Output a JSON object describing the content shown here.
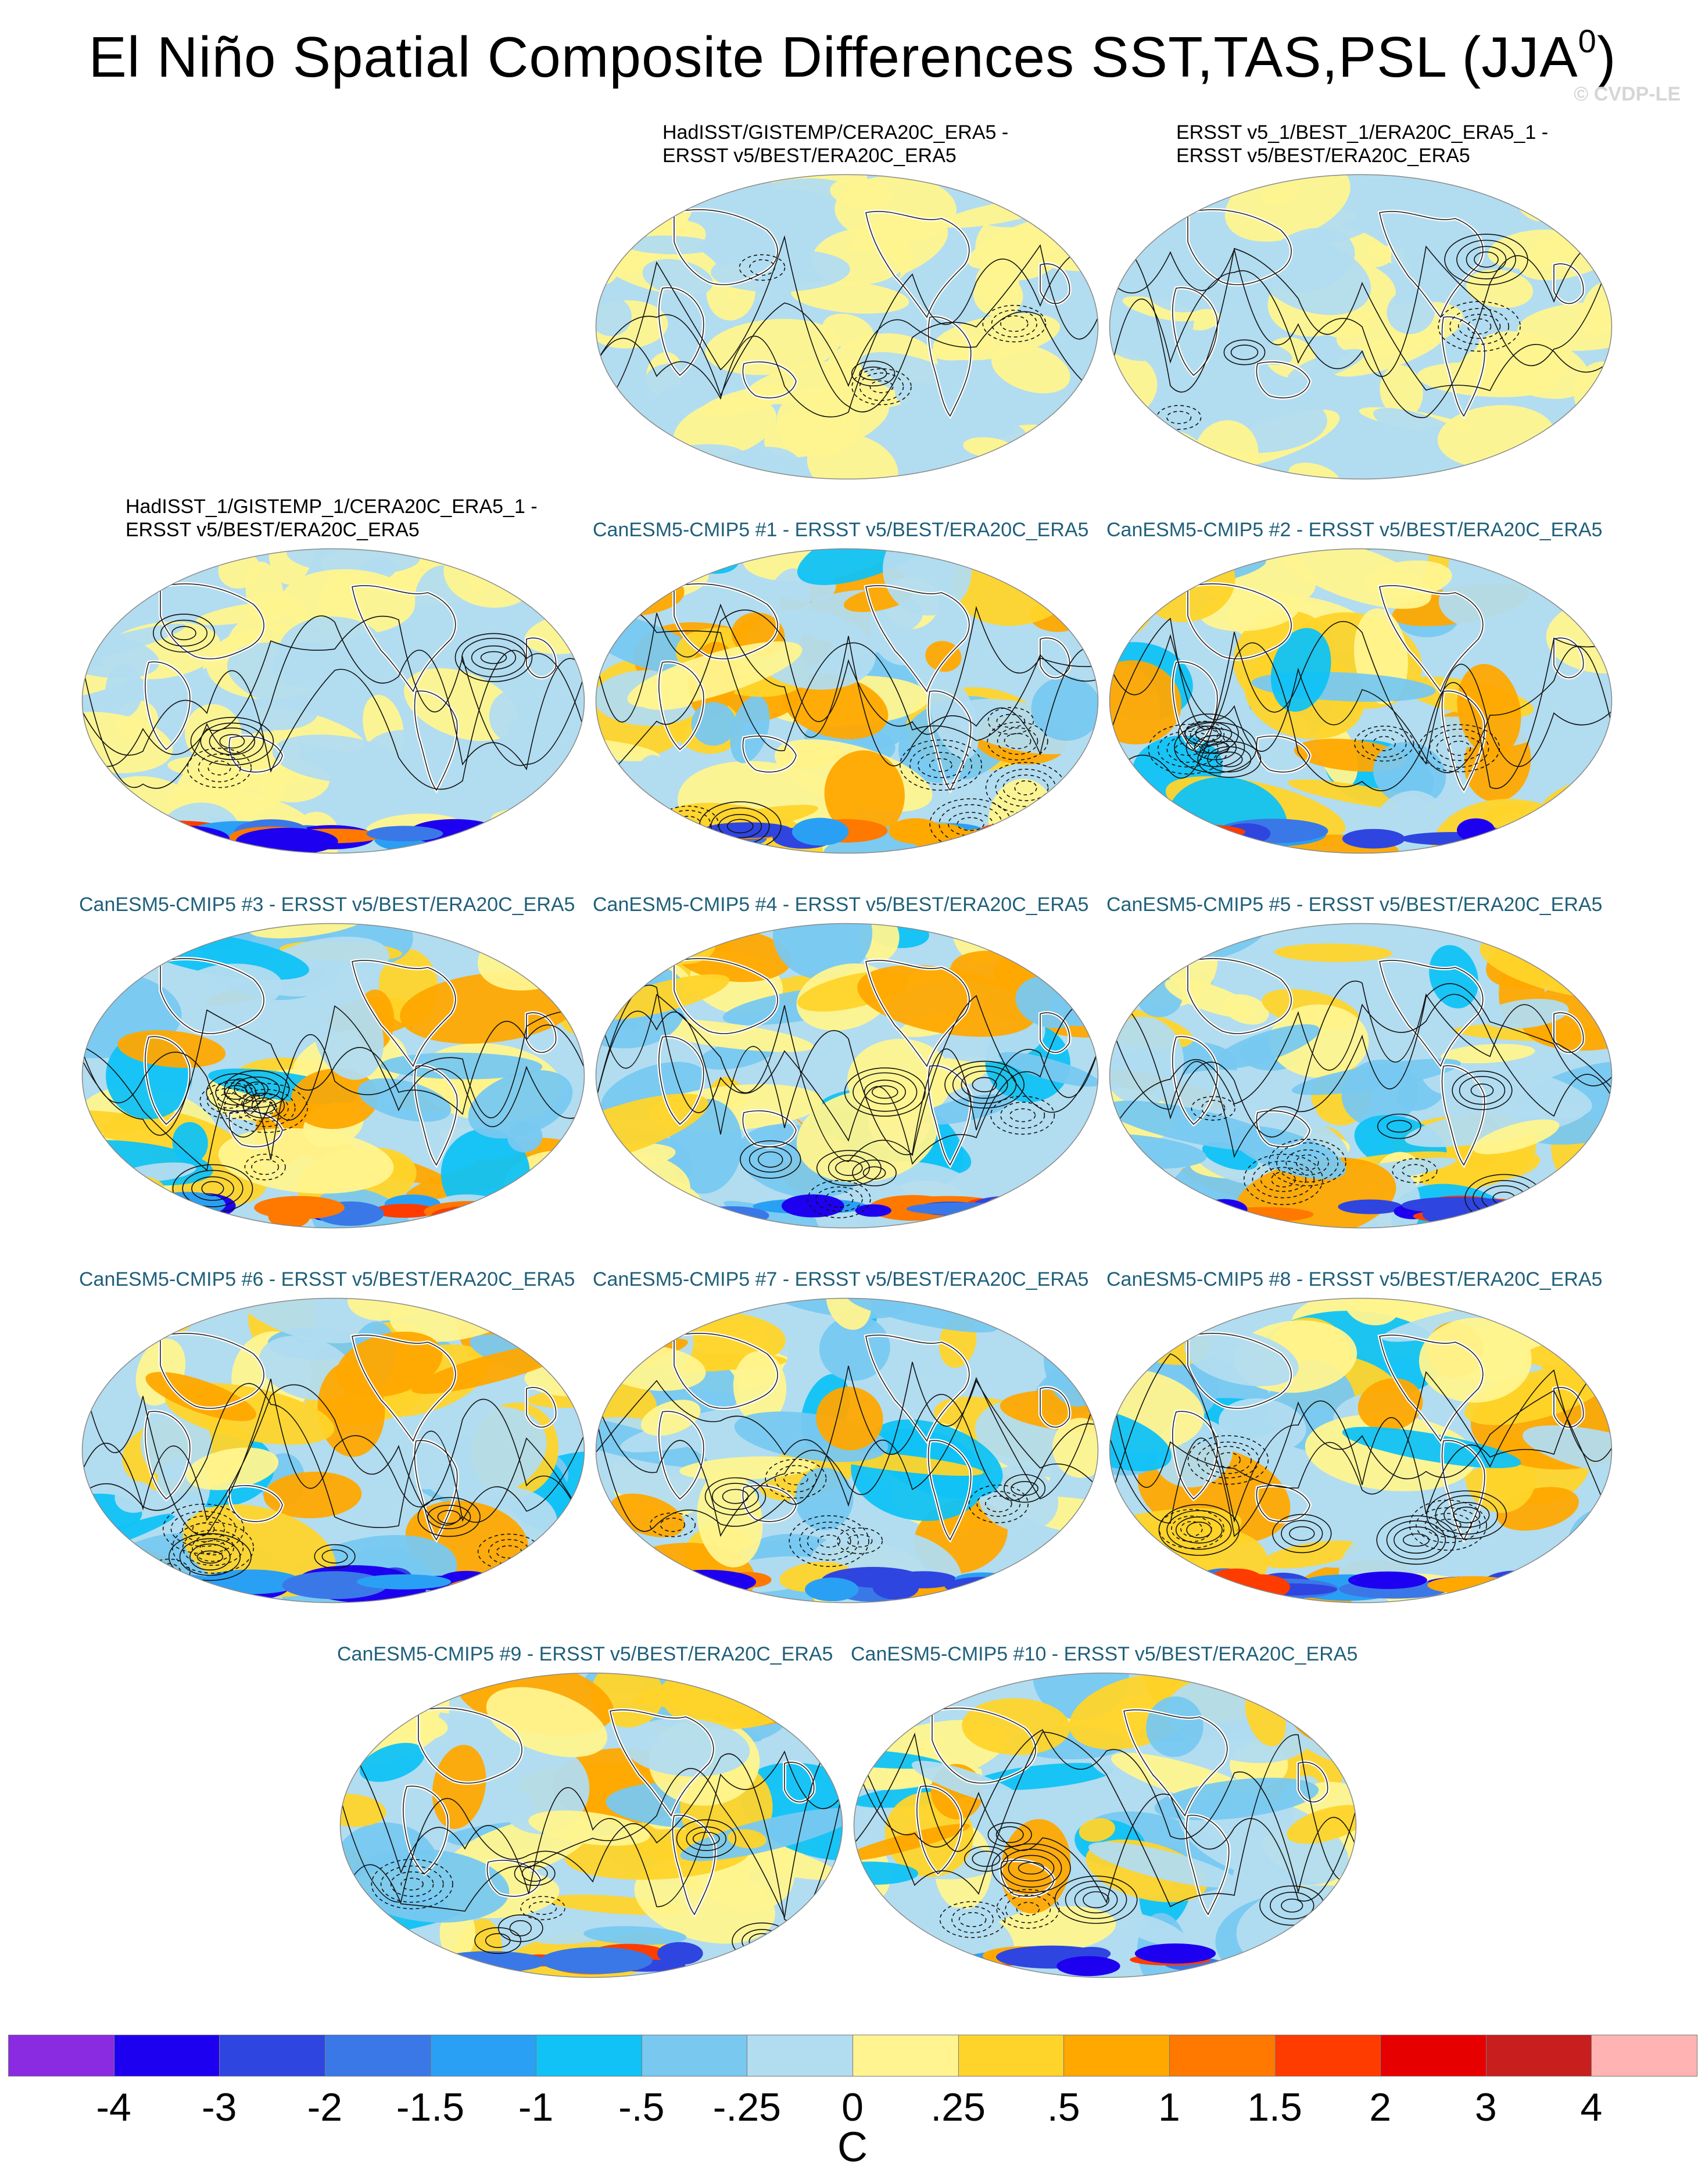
{
  "title": {
    "main": "El Niño Spatial Composite Differences SST,TAS,PSL (JJA",
    "sup": "0",
    "close": ")"
  },
  "credit": "© CVDP-LE",
  "panels": [
    {
      "line1": "HadISST/GISTEMP/CERA20C_ERA5 -",
      "line2": "ERSST v5/BEST/ERA20C_ERA5",
      "kind": "obs"
    },
    {
      "line1": "ERSST v5_1/BEST_1/ERA20C_ERA5_1 -",
      "line2": "ERSST v5/BEST/ERA20C_ERA5",
      "kind": "obs"
    },
    {
      "line1": "HadISST_1/GISTEMP_1/CERA20C_ERA5_1 -",
      "line2": "ERSST v5/BEST/ERA20C_ERA5",
      "kind": "obs"
    },
    {
      "line1": "CanESM5-CMIP5 #1 - ERSST v5/BEST/ERA20C_ERA5",
      "line2": "",
      "kind": "model"
    },
    {
      "line1": "CanESM5-CMIP5 #2 - ERSST v5/BEST/ERA20C_ERA5",
      "line2": "",
      "kind": "model"
    },
    {
      "line1": "CanESM5-CMIP5 #3 - ERSST v5/BEST/ERA20C_ERA5",
      "line2": "",
      "kind": "model"
    },
    {
      "line1": "CanESM5-CMIP5 #4 - ERSST v5/BEST/ERA20C_ERA5",
      "line2": "",
      "kind": "model"
    },
    {
      "line1": "CanESM5-CMIP5 #5 - ERSST v5/BEST/ERA20C_ERA5",
      "line2": "",
      "kind": "model"
    },
    {
      "line1": "CanESM5-CMIP5 #6 - ERSST v5/BEST/ERA20C_ERA5",
      "line2": "",
      "kind": "model"
    },
    {
      "line1": "CanESM5-CMIP5 #7 - ERSST v5/BEST/ERA20C_ERA5",
      "line2": "",
      "kind": "model"
    },
    {
      "line1": "CanESM5-CMIP5 #8 - ERSST v5/BEST/ERA20C_ERA5",
      "line2": "",
      "kind": "model"
    },
    {
      "line1": "CanESM5-CMIP5 #9 - ERSST v5/BEST/ERA20C_ERA5",
      "line2": "",
      "kind": "model"
    },
    {
      "line1": "CanESM5-CMIP5 #10 - ERSST v5/BEST/ERA20C_ERA5",
      "line2": "",
      "kind": "model"
    }
  ],
  "colorbar": {
    "colors": [
      "#8a2be2",
      "#1e00f0",
      "#2f45e0",
      "#3a78e8",
      "#2aa0f5",
      "#10c2f5",
      "#78c8f0",
      "#b2dcf0",
      "#fff48f",
      "#ffd42a",
      "#ffa800",
      "#ff7800",
      "#ff3c00",
      "#e60000",
      "#c81e1e",
      "#ffb3b3"
    ],
    "ticks": [
      "-4",
      "-3",
      "-2",
      "-1.5",
      "-1",
      "-.5",
      "-.25",
      "0",
      ".25",
      ".5",
      "1",
      "1.5",
      "2",
      "3",
      "4"
    ],
    "unit": "C"
  }
}
